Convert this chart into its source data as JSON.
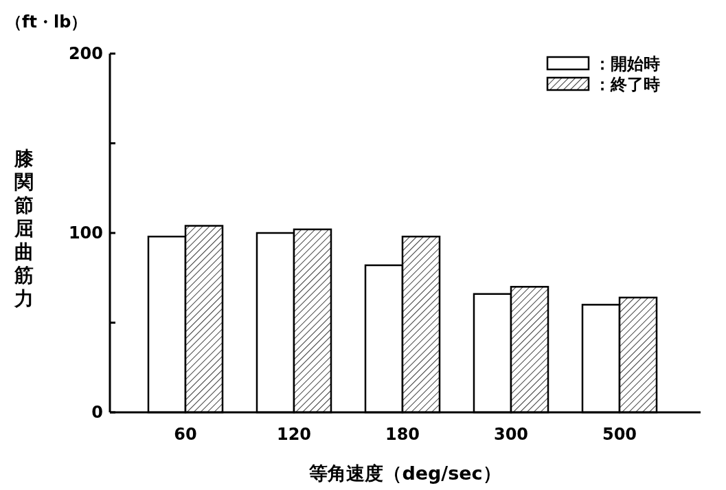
{
  "chart_data": {
    "type": "bar",
    "ylabel": "膝関節屈曲筋力",
    "xlabel": "等角速度（deg/sec）",
    "annotations": [
      "（ft・lb）"
    ],
    "categories": [
      "60",
      "120",
      "180",
      "300",
      "500"
    ],
    "series": [
      {
        "name": "：開始時",
        "color": "#ffffff",
        "values": [
          98,
          100,
          82,
          66,
          60
        ]
      },
      {
        "name": "：終了時",
        "color": "#000000",
        "values": [
          104,
          102,
          98,
          70,
          64
        ]
      }
    ],
    "ylim": [
      0,
      200
    ],
    "yticks": [
      0,
      {
        "value": 50,
        "label": null
      },
      100,
      {
        "value": 150,
        "label": null
      },
      200
    ],
    "grid": false,
    "legend": "top right"
  }
}
